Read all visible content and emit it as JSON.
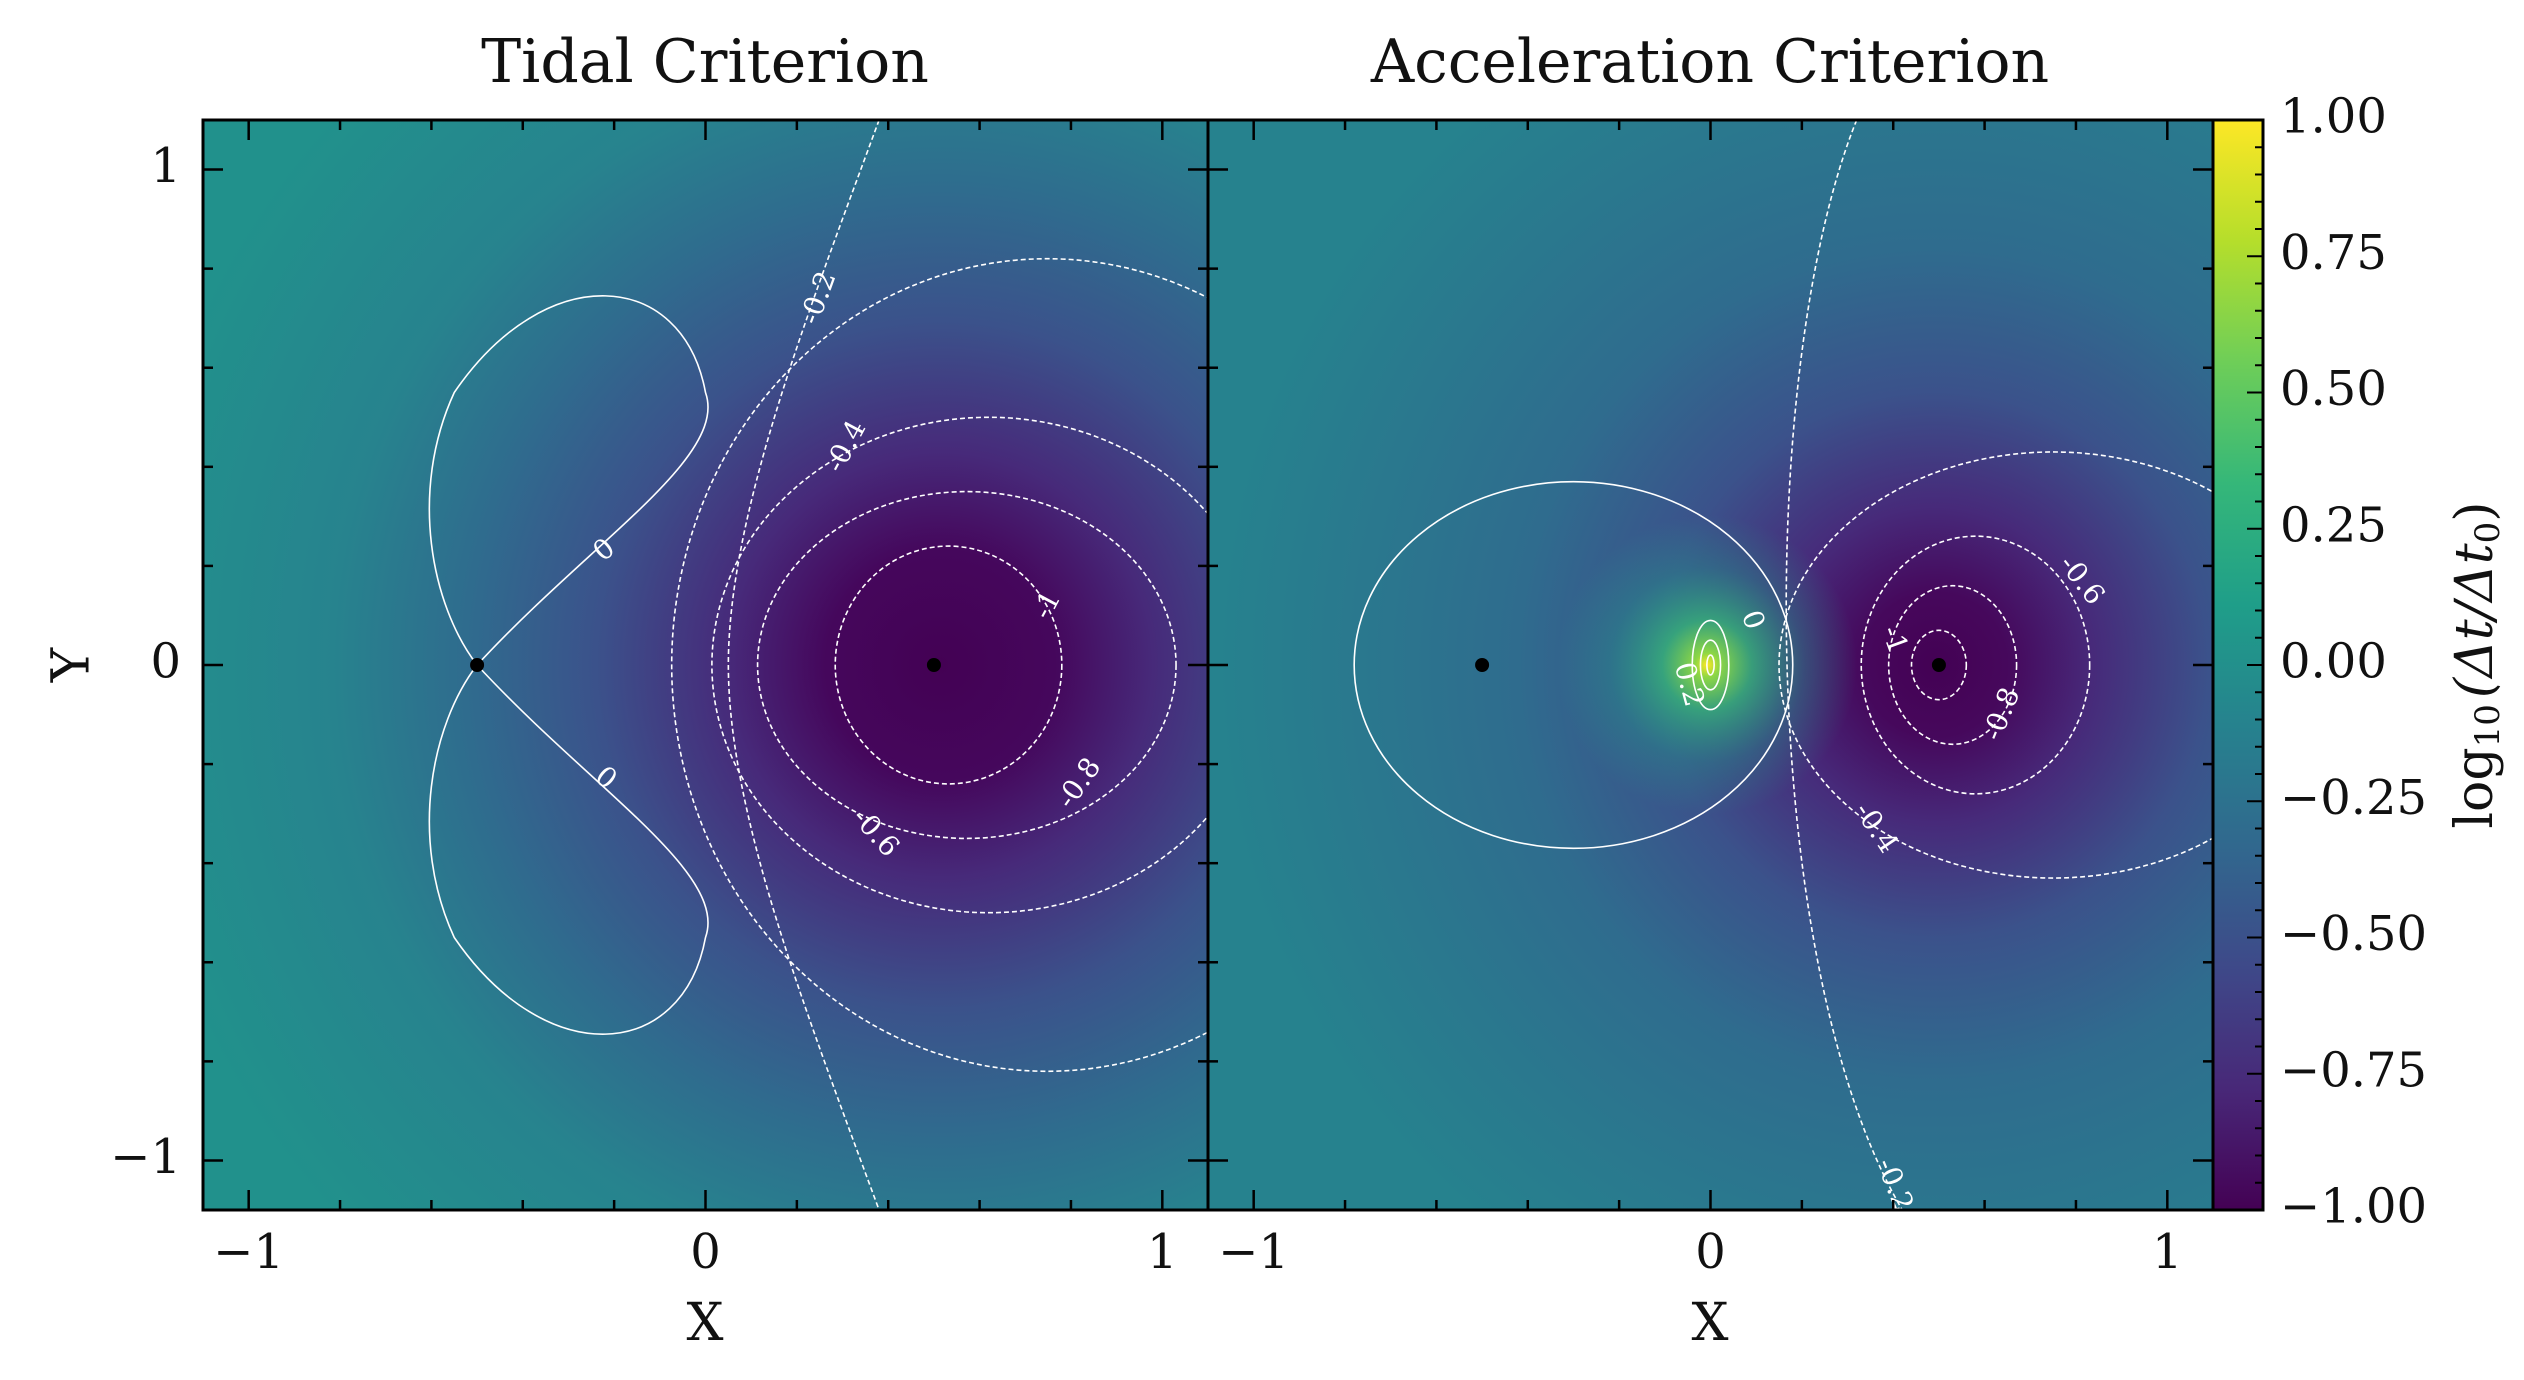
{
  "chart_data": [
    {
      "type": "heatmap",
      "title": "Tidal Criterion",
      "xlabel": "X",
      "ylabel": "Y",
      "xlim": [
        -1.1,
        1.1
      ],
      "ylim": [
        -1.1,
        1.1
      ],
      "xticks": [
        -1,
        0,
        1
      ],
      "xtick_labels": [
        "−1",
        "0",
        "1"
      ],
      "yticks": [
        -1,
        0,
        1
      ],
      "ytick_labels": [
        "−1",
        "0",
        "1"
      ],
      "masses": [
        {
          "x": -0.5,
          "y": 0
        },
        {
          "x": 0.5,
          "y": 0
        }
      ],
      "contour_levels": [
        -1,
        -0.8,
        -0.6,
        -0.4,
        -0.2,
        0
      ],
      "contour_labels": [
        {
          "text": "0",
          "x": -0.22,
          "y": 0.23,
          "rot": -40
        },
        {
          "text": "0",
          "x": -0.22,
          "y": -0.23,
          "rot": 40
        },
        {
          "text": "-0.2",
          "x": 0.25,
          "y": 0.74,
          "rot": -70
        },
        {
          "text": "-0.4",
          "x": 0.31,
          "y": 0.44,
          "rot": -62
        },
        {
          "text": "-1",
          "x": 0.75,
          "y": 0.12,
          "rot": -62
        },
        {
          "text": "-0.8",
          "x": 0.82,
          "y": -0.24,
          "rot": -55
        },
        {
          "text": "-0.6",
          "x": 0.37,
          "y": -0.34,
          "rot": 48
        }
      ]
    },
    {
      "type": "heatmap",
      "title": "Acceleration Criterion",
      "xlabel": "X",
      "ylabel": "",
      "xlim": [
        -1.1,
        1.1
      ],
      "ylim": [
        -1.1,
        1.1
      ],
      "xticks": [
        -1,
        0,
        1
      ],
      "xtick_labels": [
        "−1",
        "0",
        "1"
      ],
      "masses": [
        {
          "x": -0.5,
          "y": 0
        },
        {
          "x": 0.5,
          "y": 0
        }
      ],
      "contour_levels": [
        -1,
        -0.8,
        -0.6,
        -0.4,
        -0.2,
        0,
        0.2
      ],
      "contour_labels": [
        {
          "text": "0",
          "x": 0.09,
          "y": 0.09,
          "rot": 70
        },
        {
          "text": "0.2",
          "x": -0.05,
          "y": -0.04,
          "rot": 75
        },
        {
          "text": "-1",
          "x": 0.4,
          "y": 0.05,
          "rot": 70
        },
        {
          "text": "-0.6",
          "x": 0.81,
          "y": 0.17,
          "rot": 52
        },
        {
          "text": "-0.8",
          "x": 0.64,
          "y": -0.1,
          "rot": -68
        },
        {
          "text": "-0.4",
          "x": 0.36,
          "y": -0.33,
          "rot": 56
        },
        {
          "text": "-0.2",
          "x": 0.4,
          "y": -1.05,
          "rot": 68
        }
      ]
    }
  ],
  "colorbar": {
    "label": "log",
    "label_sub": "10",
    "label_expr": "(Δt/Δt",
    "label_expr_sub": "0",
    "label_close": ")",
    "range": [
      -1,
      1
    ],
    "ticks": [
      1,
      0.75,
      0.5,
      0.25,
      0,
      -0.25,
      -0.5,
      -0.75,
      -1
    ],
    "tick_labels": [
      "1.00",
      "0.75",
      "0.50",
      "0.25",
      "0.00",
      "−0.25",
      "−0.50",
      "−0.75",
      "−1.00"
    ],
    "colormap": [
      "#440154",
      "#482878",
      "#3e4989",
      "#31688e",
      "#26828e",
      "#1f9e89",
      "#35b779",
      "#6ece58",
      "#b5de2b",
      "#fde725"
    ]
  }
}
